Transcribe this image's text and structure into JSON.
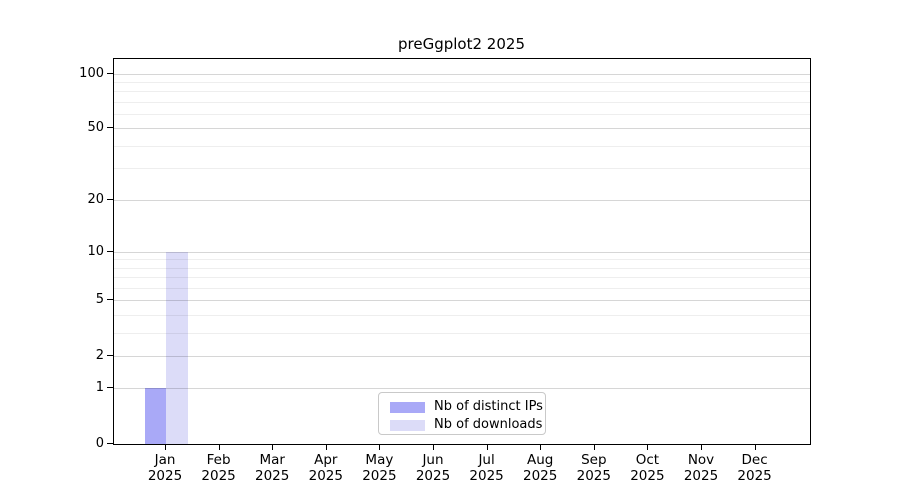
{
  "chart_data": {
    "type": "bar",
    "title": "preGgplot2 2025",
    "categories": [
      "Jan",
      "Feb",
      "Mar",
      "Apr",
      "May",
      "Jun",
      "Jul",
      "Aug",
      "Sep",
      "Oct",
      "Nov",
      "Dec"
    ],
    "category_year": "2025",
    "series": [
      {
        "name": "Nb of distinct IPs",
        "color": "#a9a9f7",
        "values": [
          1,
          0,
          0,
          0,
          0,
          0,
          0,
          0,
          0,
          0,
          0,
          0
        ]
      },
      {
        "name": "Nb of downloads",
        "color": "#dcdcf8",
        "values": [
          10,
          0,
          0,
          0,
          0,
          0,
          0,
          0,
          0,
          0,
          0,
          0
        ]
      }
    ],
    "yscale": "log1p",
    "y_ticks": [
      0,
      1,
      2,
      5,
      10,
      20,
      50,
      100
    ],
    "y_minor_ticks": [
      3,
      4,
      6,
      7,
      8,
      9,
      30,
      40,
      60,
      70,
      80,
      90
    ],
    "ylim": [
      0,
      120
    ],
    "xlabel": "",
    "ylabel": "",
    "grid": "horizontal",
    "legend_position": "lower-center-inside",
    "colors": {
      "background": "#ffffff",
      "spine": "#000000",
      "major_grid": "#d6d6d6",
      "minor_grid": "#ebebeb",
      "legend_border": "#c9c9c9"
    }
  }
}
